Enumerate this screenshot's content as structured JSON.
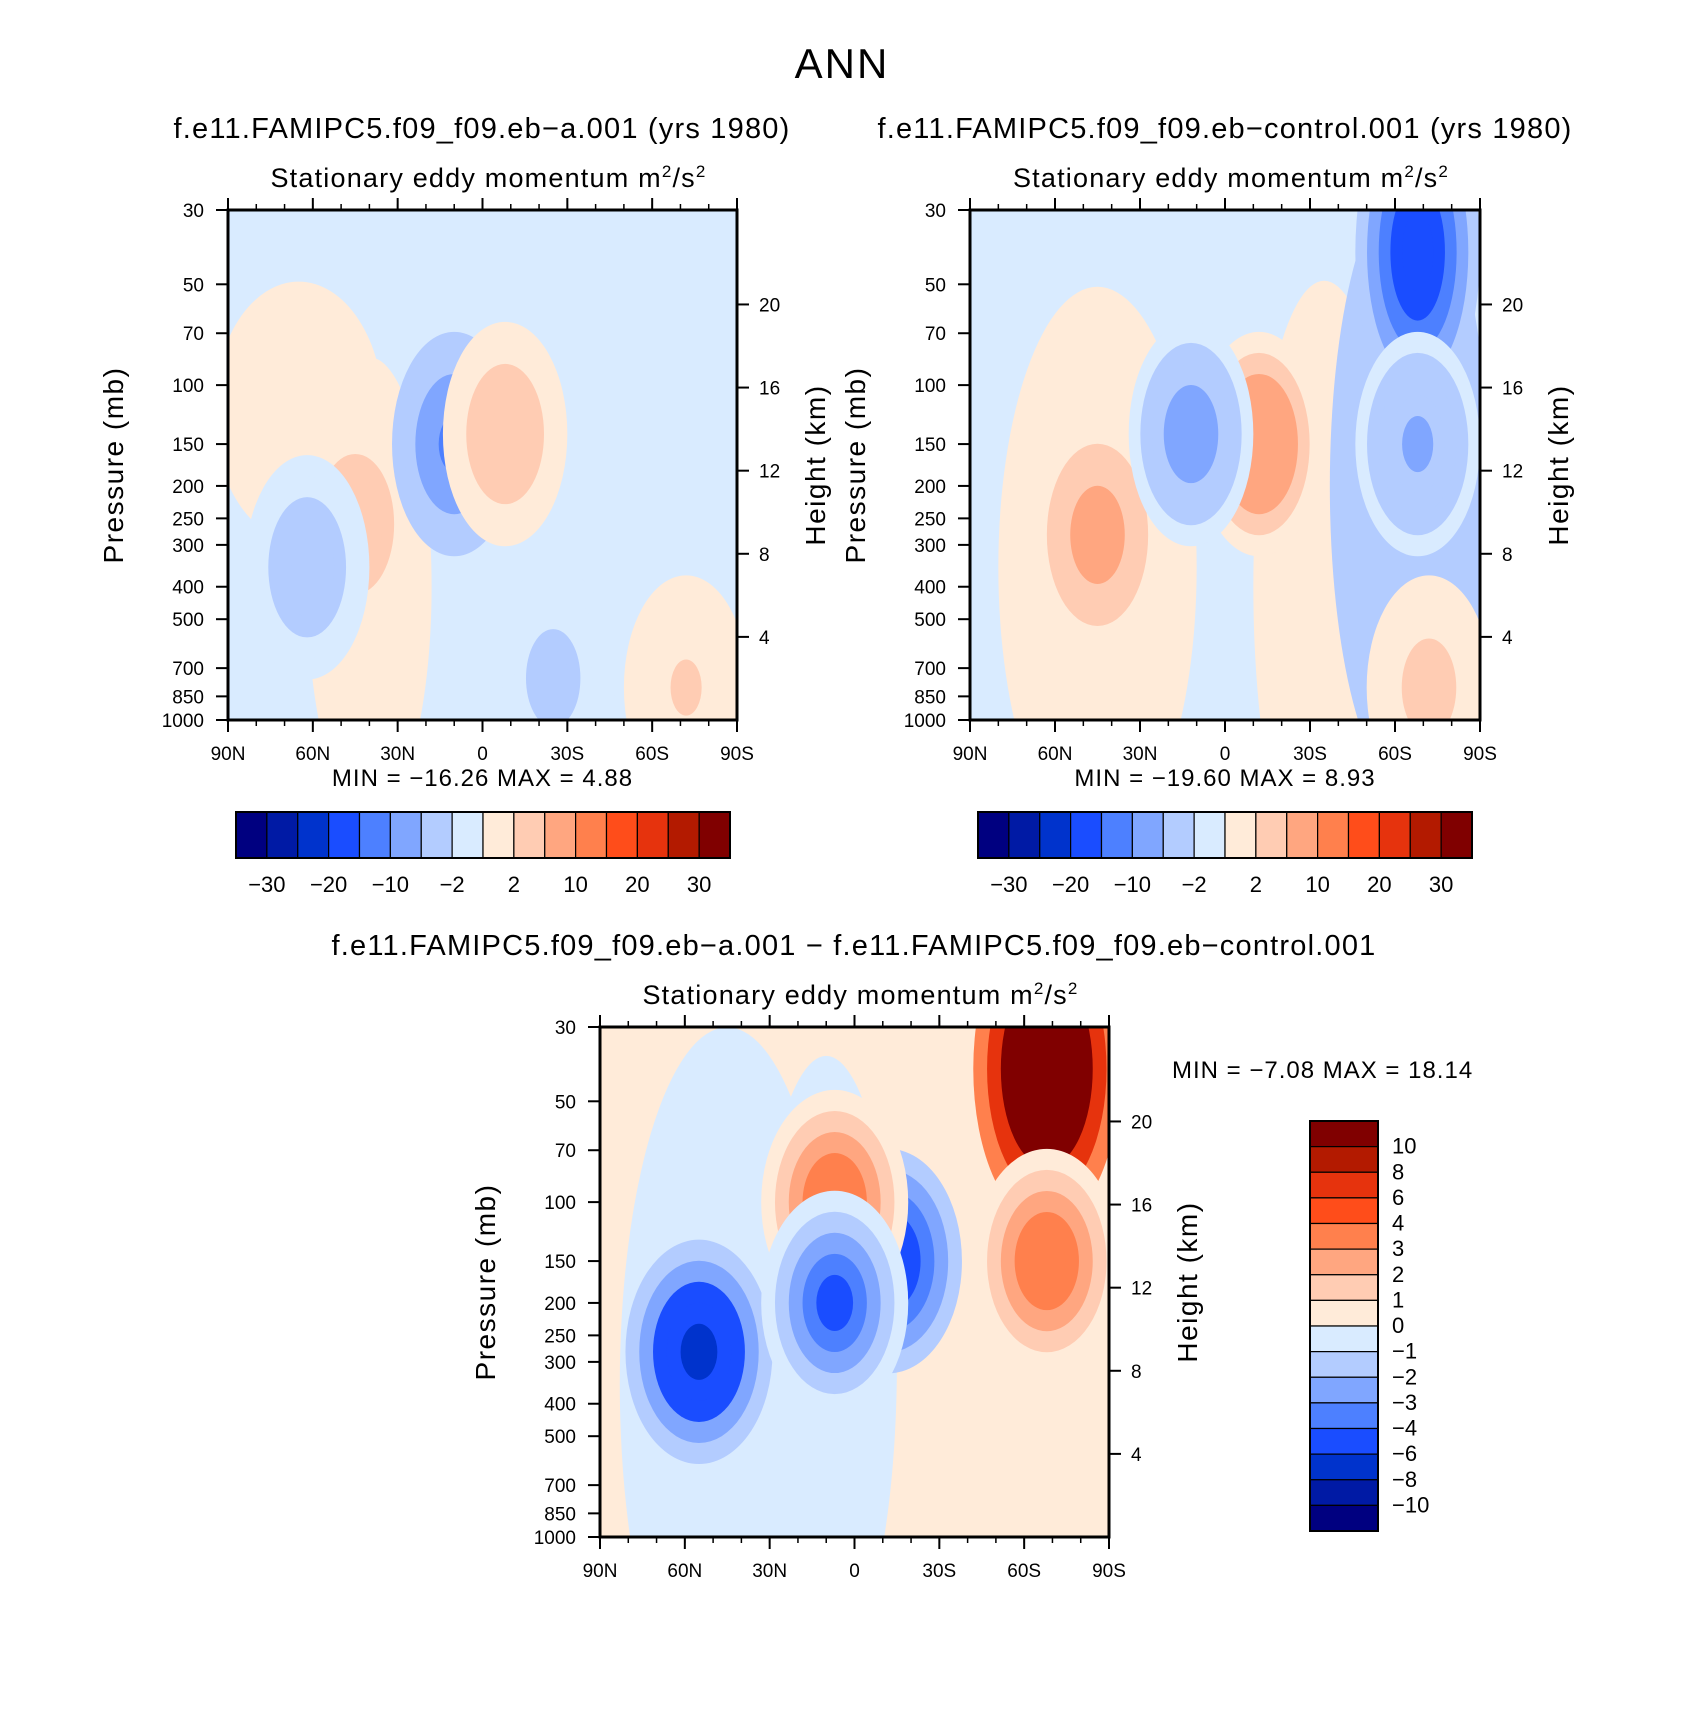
{
  "figure": {
    "title": "ANN"
  },
  "palette": {
    "cold": [
      "#000080",
      "#001aa5",
      "#0033cc",
      "#1a4dff",
      "#4d80ff",
      "#80a6ff",
      "#b3ccff",
      "#d9ebff"
    ],
    "warm": [
      "#ffebd9",
      "#ffccb3",
      "#ffa680",
      "#ff804d",
      "#ff4d1a",
      "#e6330d",
      "#b31a00",
      "#800000"
    ]
  },
  "chart_data": [
    {
      "type": "heatmap",
      "run_title": "f.e11.FAMIPC5.f09_f09.eb−a.001 (yrs 1980)",
      "title": "Stationary eddy momentum",
      "units_base": "m",
      "units_sup1": "2",
      "units_mid": "/s",
      "units_sup2": "2",
      "ylabel": "Pressure (mb)",
      "ylabel_right": "Height (km)",
      "x_ticks": [
        "90N",
        "60N",
        "30N",
        "0",
        "30S",
        "60S",
        "90S"
      ],
      "x_range": [
        90,
        -90
      ],
      "y_ticks": [
        "30",
        "50",
        "70",
        "100",
        "150",
        "200",
        "250",
        "300",
        "400",
        "500",
        "700",
        "850",
        "1000"
      ],
      "y_range_mb": [
        1000,
        30
      ],
      "height_ticks": [
        "4",
        "8",
        "12",
        "16",
        "20"
      ],
      "min_text": "MIN = −16.26",
      "max_text": "MAX =    4.88",
      "min": -16.26,
      "max": 4.88,
      "colorbar_labels": [
        "−30",
        "−20",
        "−10",
        "−2",
        "2",
        "10",
        "20",
        "30"
      ],
      "features": [
        {
          "lat": 45,
          "p": 260,
          "value": 3.5
        },
        {
          "lat": 10,
          "p": 150,
          "value": -12
        },
        {
          "lat": -8,
          "p": 140,
          "value": 4.88
        },
        {
          "lat": 62,
          "p": 350,
          "value": -4
        },
        {
          "lat": -72,
          "p": 800,
          "value": 2.5
        },
        {
          "lat": -25,
          "p": 750,
          "value": -3
        }
      ]
    },
    {
      "type": "heatmap",
      "run_title": "f.e11.FAMIPC5.f09_f09.eb−control.001 (yrs 1980)",
      "title": "Stationary eddy momentum",
      "units_base": "m",
      "units_sup1": "2",
      "units_mid": "/s",
      "units_sup2": "2",
      "ylabel": "Pressure (mb)",
      "ylabel_right": "Height (km)",
      "x_ticks": [
        "90N",
        "60N",
        "30N",
        "0",
        "30S",
        "60S",
        "90S"
      ],
      "x_range": [
        90,
        -90
      ],
      "y_ticks": [
        "30",
        "50",
        "70",
        "100",
        "150",
        "200",
        "250",
        "300",
        "400",
        "500",
        "700",
        "850",
        "1000"
      ],
      "y_range_mb": [
        1000,
        30
      ],
      "height_ticks": [
        "4",
        "8",
        "12",
        "16",
        "20"
      ],
      "min_text": "MIN = −19.60",
      "max_text": "MAX =    8.93",
      "min": -19.6,
      "max": 8.93,
      "colorbar_labels": [
        "−30",
        "−20",
        "−10",
        "−2",
        "2",
        "10",
        "20",
        "30"
      ],
      "features": [
        {
          "lat": 45,
          "p": 280,
          "value": 7
        },
        {
          "lat": -12,
          "p": 150,
          "value": 8.93
        },
        {
          "lat": 12,
          "p": 140,
          "value": -8
        },
        {
          "lat": -68,
          "p": 40,
          "value": -19.6
        },
        {
          "lat": -68,
          "p": 150,
          "value": -6
        },
        {
          "lat": -72,
          "p": 800,
          "value": 3
        }
      ]
    },
    {
      "type": "heatmap",
      "run_title": "f.e11.FAMIPC5.f09_f09.eb−a.001 − f.e11.FAMIPC5.f09_f09.eb−control.001",
      "title": "Stationary eddy momentum",
      "units_base": "m",
      "units_sup1": "2",
      "units_mid": "/s",
      "units_sup2": "2",
      "ylabel": "Pressure (mb)",
      "ylabel_right": "Height (km)",
      "x_ticks": [
        "90N",
        "60N",
        "30N",
        "0",
        "30S",
        "60S",
        "90S"
      ],
      "x_range": [
        90,
        -90
      ],
      "y_ticks": [
        "30",
        "50",
        "70",
        "100",
        "150",
        "200",
        "250",
        "300",
        "400",
        "500",
        "700",
        "850",
        "1000"
      ],
      "y_range_mb": [
        1000,
        30
      ],
      "height_ticks": [
        "4",
        "8",
        "12",
        "16",
        "20"
      ],
      "min_text": "MIN =    −7.08",
      "max_text": "MAX =   18.14",
      "min": -7.08,
      "max": 18.14,
      "colorbar_labels": [
        "10",
        "8",
        "6",
        "4",
        "3",
        "2",
        "1",
        "0",
        "−1",
        "−2",
        "−3",
        "−4",
        "−6",
        "−8",
        "−10"
      ],
      "features": [
        {
          "lat": 55,
          "p": 280,
          "value": -7.08
        },
        {
          "lat": -12,
          "p": 150,
          "value": -5
        },
        {
          "lat": 7,
          "p": 100,
          "value": 4
        },
        {
          "lat": -68,
          "p": 40,
          "value": 18.14
        },
        {
          "lat": -68,
          "p": 150,
          "value": 4
        },
        {
          "lat": 7,
          "p": 200,
          "value": -4
        }
      ]
    }
  ]
}
